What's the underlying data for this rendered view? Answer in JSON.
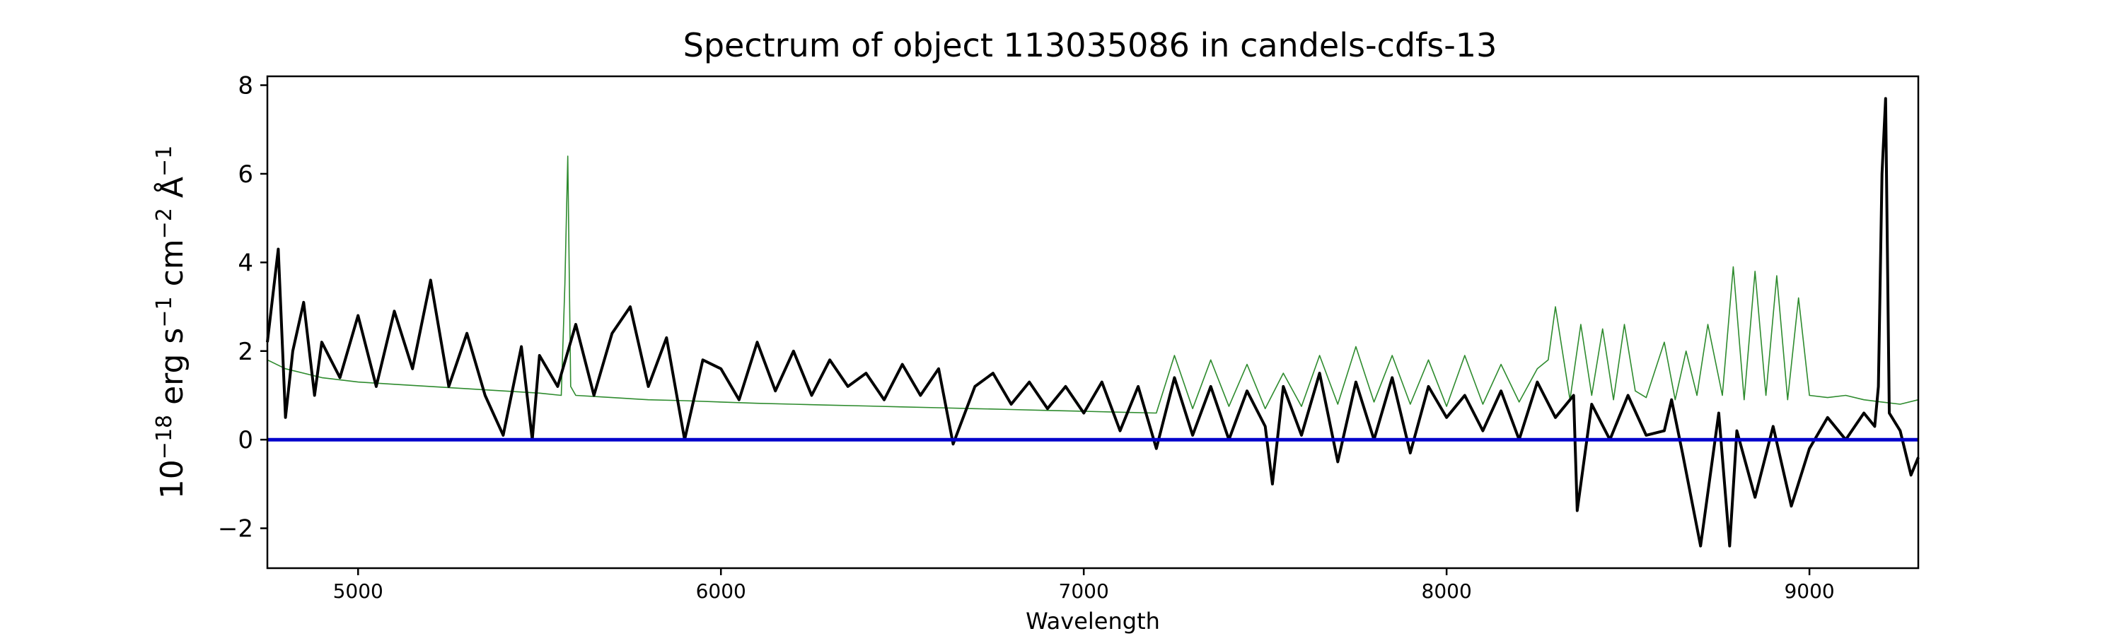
{
  "chart_data": {
    "type": "line",
    "title": "Spectrum of object 113035086 in candels-cdfs-13",
    "xlabel": "Wavelength",
    "ylabel": "10^{-18} erg s^{-1} cm^{-2} Å^{-1}",
    "ylabel_parts": {
      "base": "10",
      "exp1": "−18",
      "erg": " erg s",
      "exp2": "−1",
      "cm": " cm",
      "exp3": "−2",
      "ang": " Å",
      "exp4": "−1"
    },
    "xlim": [
      4750,
      9300
    ],
    "ylim": [
      -2.9,
      8.2
    ],
    "xticks": [
      5000,
      6000,
      7000,
      8000,
      9000
    ],
    "xtick_labels": [
      "5000",
      "6000",
      "7000",
      "8000",
      "9000"
    ],
    "yticks": [
      -2,
      0,
      2,
      4,
      6,
      8
    ],
    "ytick_labels": [
      "−2",
      "0",
      "2",
      "4",
      "6",
      "8"
    ],
    "grid": false,
    "series": [
      {
        "role": "error",
        "color": "#2e8b2e",
        "x": [
          4750,
          4800,
          4900,
          5000,
          5100,
          5200,
          5300,
          5400,
          5500,
          5560,
          5570,
          5578,
          5586,
          5600,
          5700,
          5800,
          5900,
          6000,
          6100,
          6200,
          6300,
          6400,
          6500,
          6600,
          6700,
          6800,
          6900,
          7000,
          7100,
          7200,
          7250,
          7300,
          7350,
          7400,
          7450,
          7500,
          7550,
          7600,
          7650,
          7700,
          7750,
          7800,
          7850,
          7900,
          7950,
          8000,
          8050,
          8100,
          8150,
          8200,
          8250,
          8280,
          8300,
          8340,
          8370,
          8400,
          8430,
          8460,
          8490,
          8520,
          8550,
          8600,
          8630,
          8660,
          8690,
          8720,
          8760,
          8790,
          8820,
          8850,
          8880,
          8910,
          8940,
          8970,
          9000,
          9050,
          9100,
          9150,
          9200,
          9250,
          9300
        ],
        "y": [
          1.8,
          1.6,
          1.4,
          1.3,
          1.25,
          1.2,
          1.15,
          1.1,
          1.05,
          1.0,
          3.5,
          6.4,
          1.2,
          1.0,
          0.95,
          0.9,
          0.88,
          0.85,
          0.82,
          0.8,
          0.78,
          0.76,
          0.74,
          0.72,
          0.7,
          0.68,
          0.66,
          0.64,
          0.62,
          0.6,
          1.9,
          0.7,
          1.8,
          0.75,
          1.7,
          0.7,
          1.5,
          0.75,
          1.9,
          0.8,
          2.1,
          0.85,
          1.9,
          0.8,
          1.8,
          0.75,
          1.9,
          0.8,
          1.7,
          0.85,
          1.6,
          1.8,
          3.0,
          0.9,
          2.6,
          1.0,
          2.5,
          0.9,
          2.6,
          1.1,
          0.95,
          2.2,
          0.9,
          2.0,
          1.0,
          2.6,
          1.0,
          3.9,
          0.9,
          3.8,
          1.0,
          3.7,
          0.9,
          3.2,
          1.0,
          0.95,
          1.0,
          0.9,
          0.85,
          0.8,
          0.9
        ]
      },
      {
        "role": "flux",
        "color": "#000000",
        "x": [
          4750,
          4780,
          4800,
          4820,
          4850,
          4880,
          4900,
          4950,
          5000,
          5050,
          5100,
          5150,
          5200,
          5250,
          5300,
          5350,
          5400,
          5450,
          5480,
          5500,
          5550,
          5600,
          5650,
          5700,
          5750,
          5800,
          5850,
          5900,
          5950,
          6000,
          6050,
          6100,
          6150,
          6200,
          6250,
          6300,
          6350,
          6400,
          6450,
          6500,
          6550,
          6600,
          6640,
          6700,
          6750,
          6800,
          6850,
          6900,
          6950,
          7000,
          7050,
          7100,
          7150,
          7200,
          7250,
          7300,
          7350,
          7400,
          7450,
          7500,
          7520,
          7550,
          7600,
          7650,
          7700,
          7750,
          7800,
          7850,
          7900,
          7950,
          8000,
          8050,
          8100,
          8150,
          8200,
          8250,
          8300,
          8350,
          8360,
          8400,
          8450,
          8500,
          8550,
          8600,
          8620,
          8650,
          8700,
          8750,
          8780,
          8800,
          8850,
          8900,
          8950,
          9000,
          9050,
          9100,
          9150,
          9180,
          9190,
          9200,
          9210,
          9220,
          9250,
          9280,
          9300
        ],
        "y": [
          2.2,
          4.3,
          0.5,
          2.0,
          3.1,
          1.0,
          2.2,
          1.4,
          2.8,
          1.2,
          2.9,
          1.6,
          3.6,
          1.2,
          2.4,
          1.0,
          0.1,
          2.1,
          0.0,
          1.9,
          1.2,
          2.6,
          1.0,
          2.4,
          3.0,
          1.2,
          2.3,
          0.0,
          1.8,
          1.6,
          0.9,
          2.2,
          1.1,
          2.0,
          1.0,
          1.8,
          1.2,
          1.5,
          0.9,
          1.7,
          1.0,
          1.6,
          -0.1,
          1.2,
          1.5,
          0.8,
          1.3,
          0.7,
          1.2,
          0.6,
          1.3,
          0.2,
          1.2,
          -0.2,
          1.4,
          0.1,
          1.2,
          0.0,
          1.1,
          0.3,
          -1.0,
          1.2,
          0.1,
          1.5,
          -0.5,
          1.3,
          0.0,
          1.4,
          -0.3,
          1.2,
          0.5,
          1.0,
          0.2,
          1.1,
          0.0,
          1.3,
          0.5,
          1.0,
          -1.6,
          0.8,
          0.0,
          1.0,
          0.1,
          0.2,
          0.9,
          -0.3,
          -2.4,
          0.6,
          -2.4,
          0.2,
          -1.3,
          0.3,
          -1.5,
          -0.2,
          0.5,
          0.0,
          0.6,
          0.3,
          1.2,
          6.0,
          7.7,
          0.6,
          0.2,
          -0.8,
          -0.4
        ]
      },
      {
        "role": "zero",
        "color": "#0000cc",
        "x": [
          4750,
          9300
        ],
        "y": [
          0,
          0
        ]
      }
    ]
  }
}
